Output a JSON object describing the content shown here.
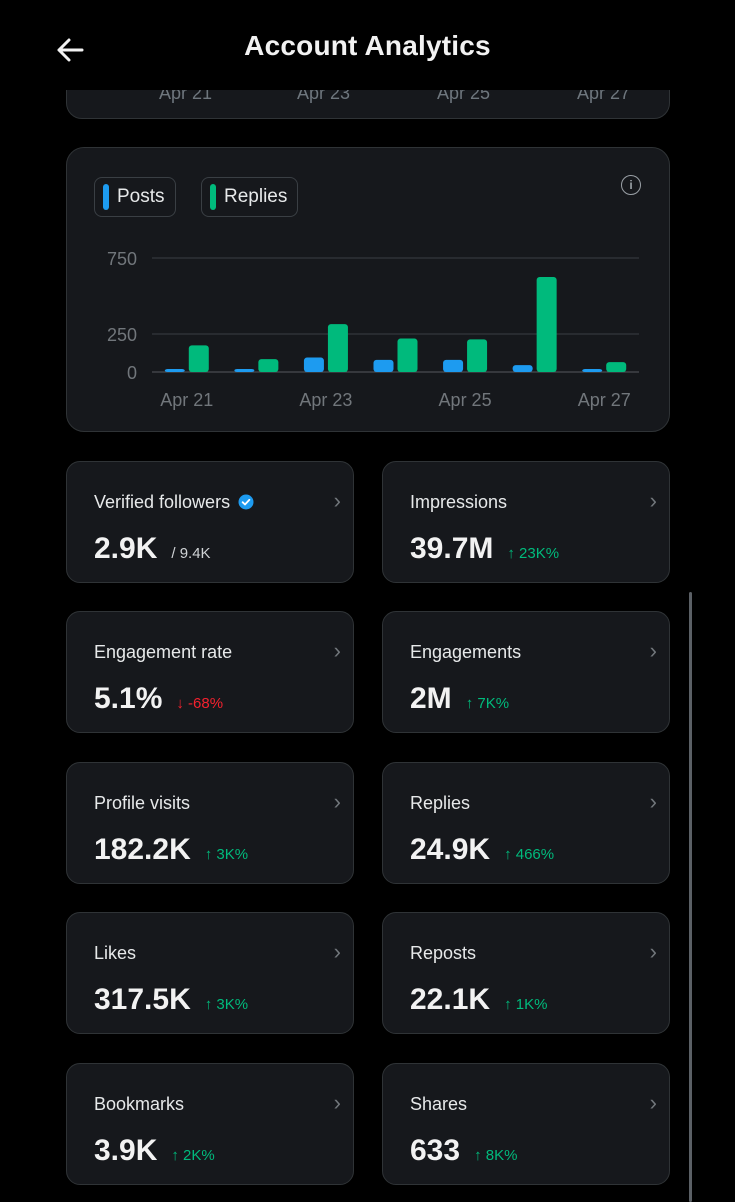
{
  "header": {
    "title": "Account Analytics"
  },
  "top_card": {
    "x_labels": [
      "Apr 21",
      "Apr 23",
      "Apr 25",
      "Apr 27"
    ]
  },
  "chart": {
    "legend": {
      "posts": "Posts",
      "replies": "Replies"
    },
    "colors": {
      "posts": "#1d9bf0",
      "replies": "#00ba7c"
    }
  },
  "chart_data": {
    "type": "bar",
    "title": "",
    "categories": [
      "Apr 21",
      "Apr 22",
      "Apr 23",
      "Apr 24",
      "Apr 25",
      "Apr 26",
      "Apr 27"
    ],
    "x_tick_labels": [
      "Apr 21",
      "Apr 23",
      "Apr 25",
      "Apr 27"
    ],
    "series": [
      {
        "name": "Posts",
        "values": [
          15,
          20,
          95,
          80,
          80,
          45,
          15
        ]
      },
      {
        "name": "Replies",
        "values": [
          175,
          85,
          315,
          220,
          215,
          625,
          65
        ]
      }
    ],
    "y_ticks": [
      "750",
      "250",
      "0"
    ],
    "y_tick_values": [
      750,
      250,
      0
    ],
    "ylim": [
      0,
      750
    ],
    "xlabel": "",
    "ylabel": ""
  },
  "stats": [
    {
      "label": "Verified followers",
      "value": "2.9K",
      "sub": "/ 9.4K",
      "change": "",
      "direction": ""
    },
    {
      "label": "Impressions",
      "value": "39.7M",
      "sub": "",
      "change": "↑ 23K%",
      "direction": "up"
    },
    {
      "label": "Engagement rate",
      "value": "5.1%",
      "sub": "",
      "change": "↓ -68%",
      "direction": "down"
    },
    {
      "label": "Engagements",
      "value": "2M",
      "sub": "",
      "change": "↑ 7K%",
      "direction": "up"
    },
    {
      "label": "Profile visits",
      "value": "182.2K",
      "sub": "",
      "change": "↑ 3K%",
      "direction": "up"
    },
    {
      "label": "Replies",
      "value": "24.9K",
      "sub": "",
      "change": "↑ 466%",
      "direction": "up"
    },
    {
      "label": "Likes",
      "value": "317.5K",
      "sub": "",
      "change": "↑ 3K%",
      "direction": "up"
    },
    {
      "label": "Reposts",
      "value": "22.1K",
      "sub": "",
      "change": "↑ 1K%",
      "direction": "up"
    },
    {
      "label": "Bookmarks",
      "value": "3.9K",
      "sub": "",
      "change": "↑ 2K%",
      "direction": "up"
    },
    {
      "label": "Shares",
      "value": "633",
      "sub": "",
      "change": "↑ 8K%",
      "direction": "up"
    }
  ],
  "icons": {
    "back": "arrow-left-icon",
    "info": "info-icon",
    "chevron": "chevron-right-icon",
    "verified": "verified-badge-icon"
  }
}
